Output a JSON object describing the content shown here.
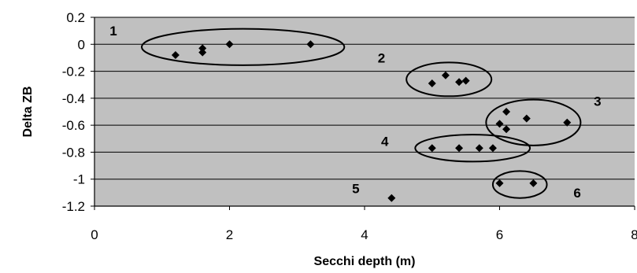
{
  "chart_data": {
    "type": "scatter",
    "title": "",
    "xlabel": "Secchi depth (m)",
    "ylabel": "Delta ZB",
    "xlim": [
      0,
      8
    ],
    "ylim": [
      -1.2,
      0.2
    ],
    "xticks": [
      "0",
      "2",
      "4",
      "6",
      "8"
    ],
    "yticks": [
      "0.2",
      "0",
      "-0.2",
      "-0.4",
      "-0.6",
      "-0.8",
      "-1",
      "-1.2"
    ],
    "grid": "horizontal",
    "legend": "none",
    "colors": {
      "plot_background": "#c0c0c0",
      "marker": "#000000",
      "gridline": "#000000"
    },
    "series": [
      {
        "points": [
          {
            "x": 1.2,
            "y": -0.08
          },
          {
            "x": 1.6,
            "y": -0.03
          },
          {
            "x": 1.6,
            "y": -0.06
          },
          {
            "x": 2.0,
            "y": 0.0
          },
          {
            "x": 3.2,
            "y": 0.0
          },
          {
            "x": 5.0,
            "y": -0.29
          },
          {
            "x": 5.2,
            "y": -0.23
          },
          {
            "x": 5.4,
            "y": -0.28
          },
          {
            "x": 5.5,
            "y": -0.27
          },
          {
            "x": 6.1,
            "y": -0.5
          },
          {
            "x": 6.0,
            "y": -0.59
          },
          {
            "x": 6.1,
            "y": -0.63
          },
          {
            "x": 6.4,
            "y": -0.55
          },
          {
            "x": 7.0,
            "y": -0.58
          },
          {
            "x": 5.0,
            "y": -0.77
          },
          {
            "x": 5.4,
            "y": -0.77
          },
          {
            "x": 5.7,
            "y": -0.77
          },
          {
            "x": 5.9,
            "y": -0.77
          },
          {
            "x": 4.4,
            "y": -1.14
          },
          {
            "x": 6.0,
            "y": -1.03
          },
          {
            "x": 6.5,
            "y": -1.03
          }
        ]
      }
    ],
    "clusters": [
      {
        "label": "1",
        "cx": 2.2,
        "cy": -0.02,
        "rx": 1.5,
        "ry": 0.135,
        "label_x": 0.28,
        "label_y": 0.1
      },
      {
        "label": "2",
        "cx": 5.25,
        "cy": -0.26,
        "rx": 0.63,
        "ry": 0.125,
        "label_x": 4.25,
        "label_y": -0.1
      },
      {
        "label": "3",
        "cx": 6.5,
        "cy": -0.58,
        "rx": 0.7,
        "ry": 0.17,
        "label_x": 7.45,
        "label_y": -0.42
      },
      {
        "label": "4",
        "cx": 5.6,
        "cy": -0.77,
        "rx": 0.85,
        "ry": 0.1,
        "label_x": 4.3,
        "label_y": -0.72
      },
      {
        "label": "5",
        "cx": null,
        "cy": null,
        "rx": null,
        "ry": null,
        "label_x": 3.87,
        "label_y": -1.07
      },
      {
        "label": "6",
        "cx": 6.3,
        "cy": -1.04,
        "rx": 0.4,
        "ry": 0.1,
        "label_x": 7.15,
        "label_y": -1.1
      }
    ]
  }
}
